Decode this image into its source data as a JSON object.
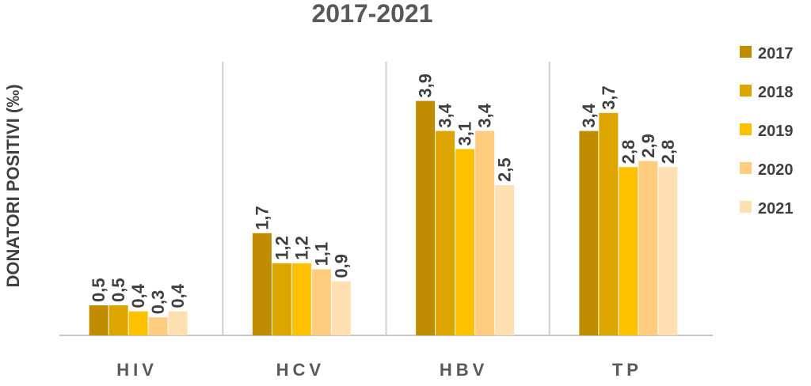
{
  "chart_data": {
    "type": "bar",
    "title": "2017-2021",
    "ylabel": "DONATORI POSITIVI (‰)",
    "xlabel": "",
    "categories": [
      "HIV",
      "HCV",
      "HBV",
      "TP"
    ],
    "series": [
      {
        "name": "2017",
        "values": [
          0.5,
          1.7,
          3.9,
          3.4
        ],
        "labels": [
          "0,5",
          "1,7",
          "3,9",
          "3,4"
        ],
        "color": "#C08C00"
      },
      {
        "name": "2018",
        "values": [
          0.5,
          1.2,
          3.4,
          3.7
        ],
        "labels": [
          "0,5",
          "1,2",
          "3,4",
          "3,7"
        ],
        "color": "#DCA500"
      },
      {
        "name": "2019",
        "values": [
          0.4,
          1.2,
          3.1,
          2.8
        ],
        "labels": [
          "0,4",
          "1,2",
          "3,1",
          "2,8"
        ],
        "color": "#FFC000"
      },
      {
        "name": "2020",
        "values": [
          0.3,
          1.1,
          3.4,
          2.9
        ],
        "labels": [
          "0,3",
          "1,1",
          "3,4",
          "2,9"
        ],
        "color": "#FFCC80"
      },
      {
        "name": "2021",
        "values": [
          0.4,
          0.9,
          2.5,
          2.8
        ],
        "labels": [
          "0,4",
          "0,9",
          "2,5",
          "2,8"
        ],
        "color": "#FFE0B2"
      }
    ],
    "ylim": [
      0,
      4.2
    ],
    "grid": false,
    "legend_position": "right"
  }
}
